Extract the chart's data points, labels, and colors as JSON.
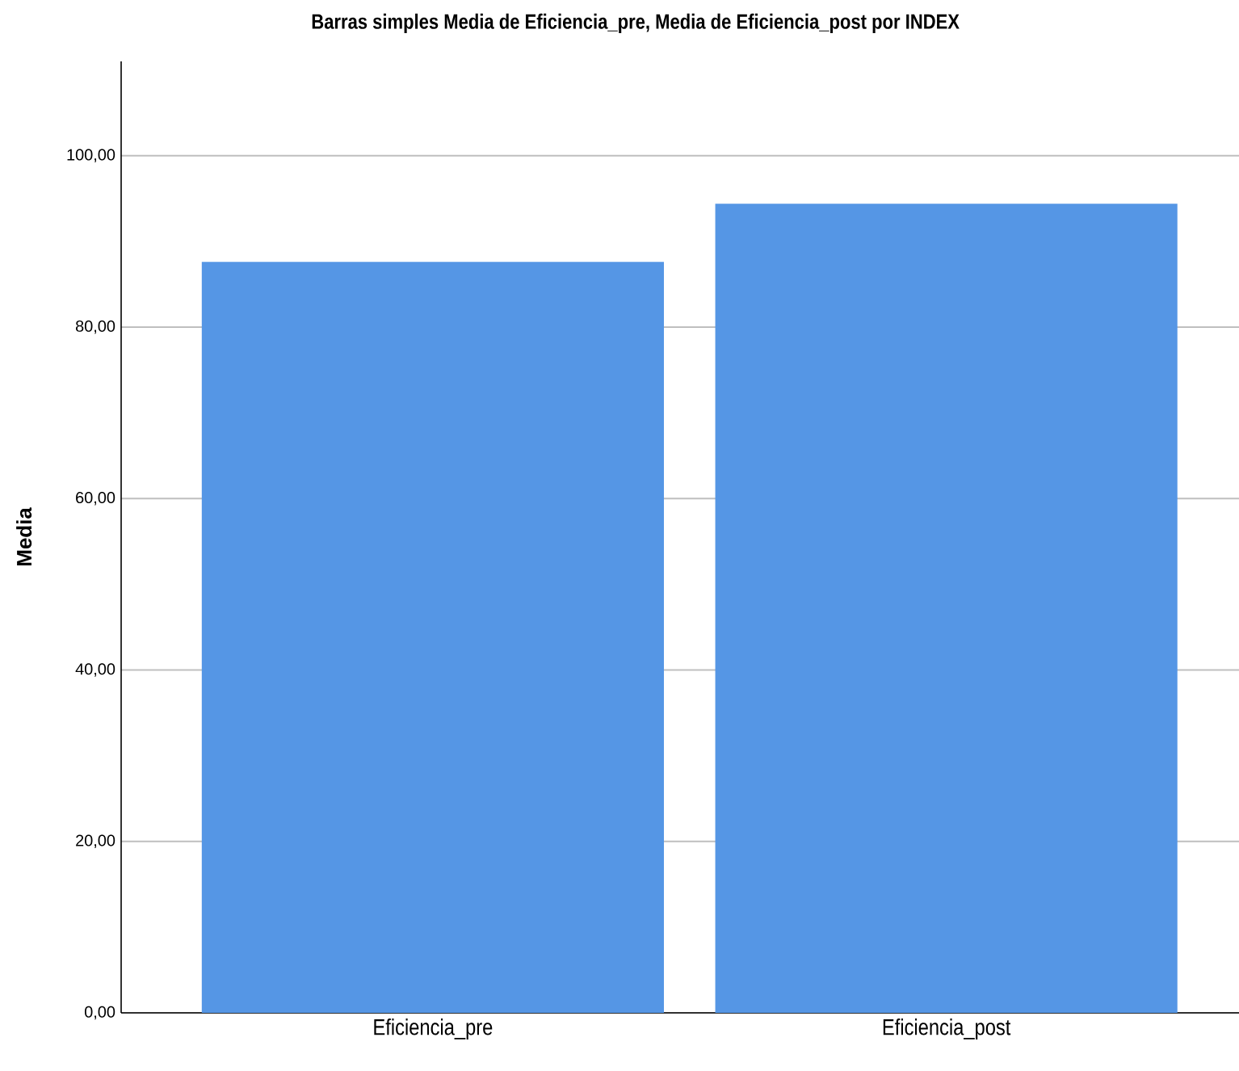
{
  "chart_data": {
    "type": "bar",
    "title": "Barras simples Media de Eficiencia_pre, Media de Eficiencia_post por INDEX",
    "ylabel": "Media",
    "categories": [
      "Eficiencia_pre",
      "Eficiencia_post"
    ],
    "values": [
      87.6,
      94.4
    ],
    "color": "#5596e5",
    "ylim": [
      0,
      111
    ],
    "yticks": [
      {
        "value": 0,
        "label": "0,00"
      },
      {
        "value": 20,
        "label": "20,00"
      },
      {
        "value": 40,
        "label": "40,00"
      },
      {
        "value": 60,
        "label": "60,00"
      },
      {
        "value": 80,
        "label": "80,00"
      },
      {
        "value": 100,
        "label": "100,00"
      }
    ],
    "grid": "y"
  }
}
